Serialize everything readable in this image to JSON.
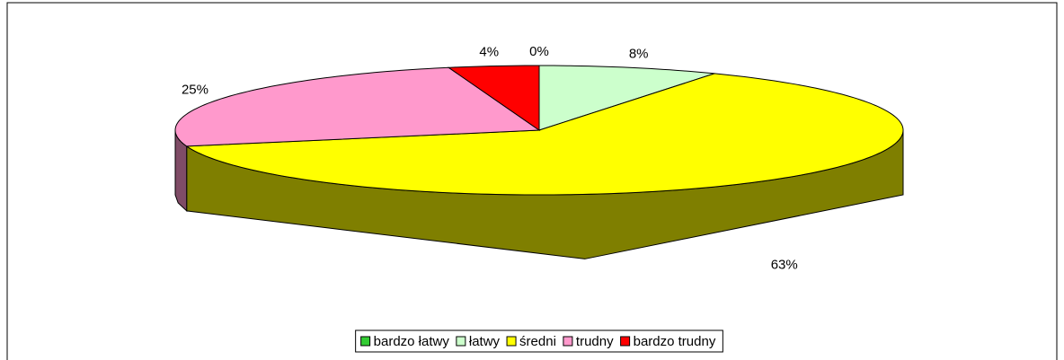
{
  "chart_data": {
    "type": "pie3d",
    "categories": [
      "bardzo łatwy",
      "łatwy",
      "średni",
      "trudny",
      "bardzo trudny"
    ],
    "values": [
      0,
      8,
      63,
      25,
      4
    ],
    "value_labels": [
      "0%",
      "8%",
      "63%",
      "25%",
      "4%"
    ],
    "colors": [
      "#33cc33",
      "#ccffcc",
      "#ffff00",
      "#ff99cc",
      "#ff0000"
    ],
    "legend": "bottom"
  }
}
